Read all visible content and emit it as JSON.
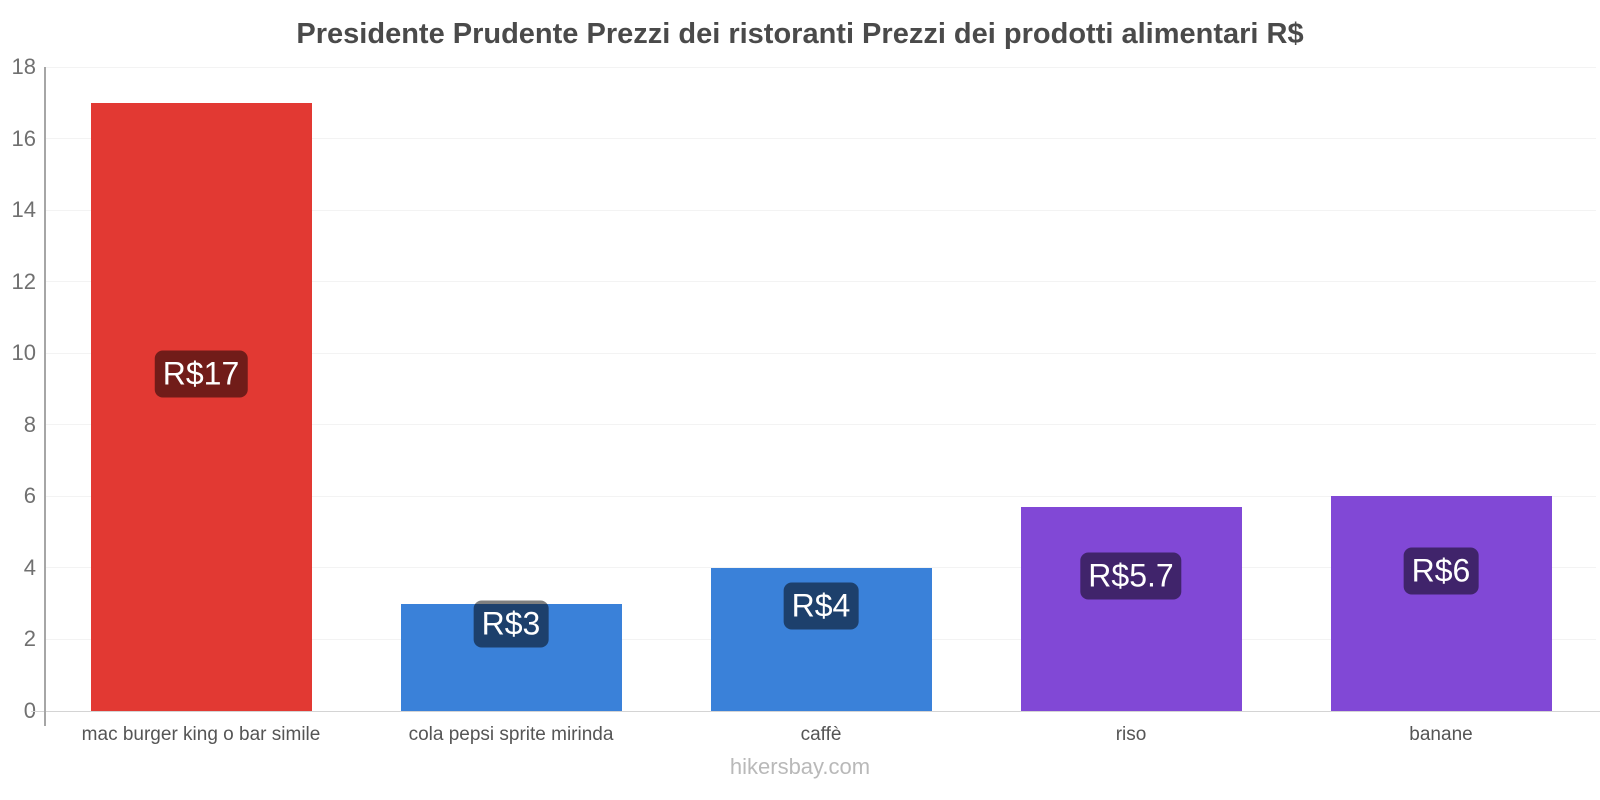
{
  "chart_data": {
    "type": "bar",
    "title": "Presidente Prudente Prezzi dei ristoranti Prezzi dei prodotti alimentari R$",
    "categories": [
      "mac burger king o bar simile",
      "cola pepsi sprite mirinda",
      "caffè",
      "riso",
      "banane"
    ],
    "values": [
      17,
      3,
      4,
      5.7,
      6
    ],
    "value_labels": [
      "R$17",
      "R$3",
      "R$4",
      "R$5.7",
      "R$6"
    ],
    "bar_colors": [
      "#e23933",
      "#3a81d9",
      "#3a81d9",
      "#8148d6",
      "#8148d6"
    ],
    "value_label_overlay": "rgba(0,0,0,0.5)",
    "ylim": [
      0,
      18
    ],
    "yticks": [
      0,
      2,
      4,
      6,
      8,
      10,
      12,
      14,
      16,
      18
    ],
    "grid": true,
    "legend": false,
    "xlabel": "",
    "ylabel": "",
    "footer": "hikersbay.com"
  }
}
